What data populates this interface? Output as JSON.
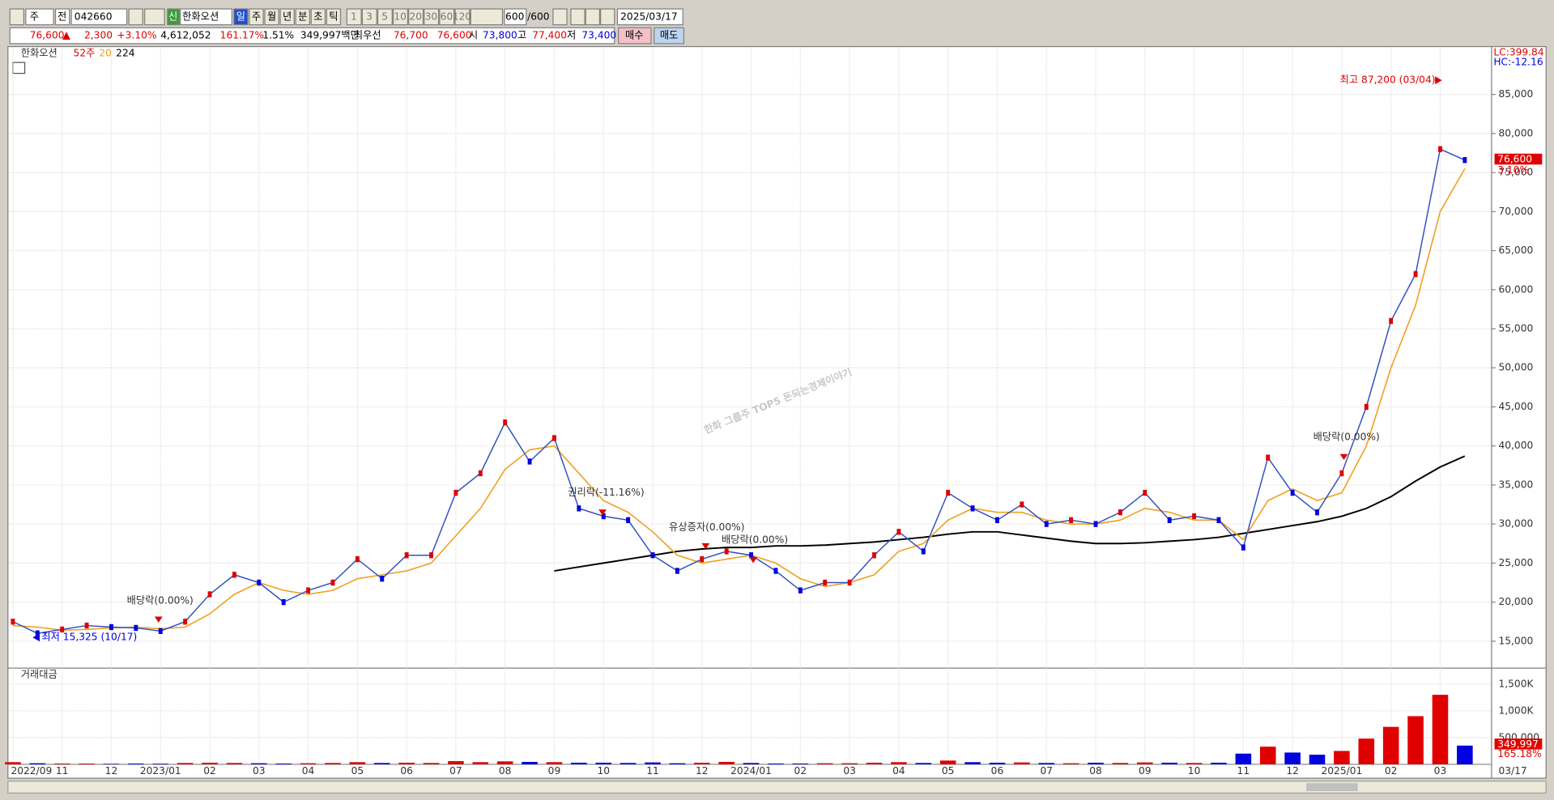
{
  "toolbar": {
    "market": "주",
    "scope": "전",
    "code": "042660",
    "credit": "신",
    "name": "한화오션",
    "periods": [
      "일",
      "주",
      "월",
      "년",
      "분",
      "초",
      "틱"
    ],
    "intervals": [
      "1",
      "3",
      "5",
      "10",
      "20",
      "30",
      "60",
      "120"
    ],
    "count": "600",
    "total": "/600",
    "date": "2025/03/17"
  },
  "info_bar": {
    "items": [
      {
        "text": "76,600",
        "color": "#e00000"
      },
      {
        "text": "2,300",
        "color": "#e00000"
      },
      {
        "text": "+3.10%",
        "color": "#e00000"
      },
      {
        "text": "4,612,052",
        "color": "#000000"
      },
      {
        "text": "161.17%",
        "color": "#e00000"
      },
      {
        "text": "1.51%",
        "color": "#000000"
      },
      {
        "text": "349,997백만",
        "color": "#000000"
      },
      {
        "text": "최우선",
        "color": "#000000"
      },
      {
        "text": "76,700",
        "color": "#e00000"
      },
      {
        "text": "76,600",
        "color": "#e00000"
      },
      {
        "text": "시",
        "color": "#000000"
      },
      {
        "text": "73,800",
        "color": "#0000e0"
      },
      {
        "text": "고",
        "color": "#000000"
      },
      {
        "text": "77,400",
        "color": "#e00000"
      },
      {
        "text": "저",
        "color": "#000000"
      },
      {
        "text": "73,400",
        "color": "#0000e0"
      }
    ],
    "buy": "매수",
    "sell": "매도"
  },
  "chart_data": [
    {
      "type": "line",
      "legend_note": "52주",
      "watermark": "한화 그룹주 TOP5 돈되는경제이야기",
      "x_end_label": "03/17",
      "categories": [
        "2022/09",
        null,
        "11",
        null,
        "12",
        null,
        "2023/01",
        null,
        "02",
        null,
        "03",
        null,
        "04",
        null,
        "05",
        null,
        "06",
        null,
        "07",
        null,
        "08",
        null,
        "09",
        null,
        "10",
        null,
        "11",
        null,
        "12",
        null,
        "2024/01",
        null,
        "02",
        null,
        "03",
        null,
        "04",
        null,
        "05",
        null,
        "06",
        null,
        "07",
        null,
        "08",
        null,
        "09",
        null,
        "10",
        null,
        "11",
        null,
        "12",
        null,
        "2025/01",
        null,
        "02",
        null,
        "03",
        null
      ],
      "series": [
        {
          "name": "한화오션",
          "color": "#3050c0",
          "up_color": "#e00000",
          "down_color": "#0000e0",
          "values": [
            17500,
            16000,
            16500,
            17000,
            16800,
            16700,
            16300,
            17500,
            21000,
            23500,
            22500,
            20000,
            21500,
            22500,
            25500,
            23000,
            26000,
            26000,
            34000,
            36500,
            43000,
            38000,
            41000,
            32000,
            31000,
            30500,
            26000,
            24000,
            25500,
            26500,
            26000,
            24000,
            21500,
            22500,
            22500,
            26000,
            29000,
            26500,
            34000,
            32000,
            30500,
            32500,
            30000,
            30500,
            30000,
            31500,
            34000,
            30500,
            31000,
            30500,
            27000,
            38500,
            34000,
            31500,
            36500,
            45000,
            56000,
            62000,
            78000,
            76600
          ]
        },
        {
          "name": "20",
          "color": "#f0a020",
          "values": [
            17000,
            16800,
            16400,
            16500,
            16700,
            16800,
            16600,
            16800,
            18500,
            21000,
            22500,
            21500,
            21000,
            21500,
            23000,
            23500,
            24000,
            25000,
            28500,
            32000,
            37000,
            39500,
            40000,
            36500,
            33000,
            31500,
            29000,
            26000,
            25000,
            25500,
            26000,
            25000,
            23000,
            22000,
            22500,
            23500,
            26500,
            27500,
            30500,
            32000,
            31500,
            31500,
            30500,
            30000,
            30000,
            30500,
            32000,
            31500,
            30500,
            30500,
            28000,
            33000,
            34500,
            33000,
            34000,
            40000,
            50000,
            58000,
            70000,
            75500
          ]
        },
        {
          "name": "224",
          "color": "#000000",
          "values": [
            null,
            null,
            null,
            null,
            null,
            null,
            null,
            null,
            null,
            null,
            null,
            null,
            null,
            null,
            null,
            null,
            null,
            null,
            null,
            null,
            null,
            null,
            24000,
            24500,
            25000,
            25500,
            26000,
            26500,
            26800,
            27000,
            27000,
            27200,
            27200,
            27300,
            27500,
            27700,
            28000,
            28300,
            28700,
            29000,
            29000,
            28600,
            28200,
            27800,
            27500,
            27500,
            27600,
            27800,
            28000,
            28300,
            28800,
            29300,
            29800,
            30300,
            31000,
            32000,
            33500,
            35500,
            37300,
            38700
          ]
        }
      ],
      "ylim": [
        11800,
        91000
      ],
      "yticks": [
        {
          "value": 15000,
          "label": "15,000"
        },
        {
          "value": 20000,
          "label": "20,000"
        },
        {
          "value": 25000,
          "label": "25,000"
        },
        {
          "value": 30000,
          "label": "30,000"
        },
        {
          "value": 35000,
          "label": "35,000"
        },
        {
          "value": 40000,
          "label": "40,000"
        },
        {
          "value": 45000,
          "label": "45,000"
        },
        {
          "value": 50000,
          "label": "50,000"
        },
        {
          "value": 55000,
          "label": "55,000"
        },
        {
          "value": 60000,
          "label": "60,000"
        },
        {
          "value": 65000,
          "label": "65,000"
        },
        {
          "value": 70000,
          "label": "70,000"
        },
        {
          "value": 75000,
          "label": "75,000"
        },
        {
          "value": 80000,
          "label": "80,000"
        },
        {
          "value": 85000,
          "label": "85,000"
        }
      ],
      "grid": true,
      "annotations": [
        {
          "text": "최고 87,200 (03/04)",
          "color": "#e00000"
        },
        {
          "text": "최저 15,325 (10/17)",
          "color": "#0000e0"
        },
        {
          "text": "배당락(0.00%)",
          "color": "#333333"
        },
        {
          "text": "권리락(-11.16%)",
          "color": "#333333"
        },
        {
          "text": "유상증자(0.00%)",
          "color": "#333333"
        },
        {
          "text": "배당락(0.00%)",
          "color": "#333333"
        },
        {
          "text": "배당락(0.00%)",
          "color": "#333333"
        }
      ],
      "right_labels": [
        {
          "text": "LC:399.84",
          "color": "#e00000"
        },
        {
          "text": "HC:-12.16",
          "color": "#0000e0"
        },
        {
          "text": "76,600",
          "color": "#ffffff"
        },
        {
          "text": "3.10%",
          "color": "#e00000"
        }
      ]
    },
    {
      "type": "bar",
      "title": "거래대금",
      "up_color": "#e00000",
      "down_color": "#0000e0",
      "values": [
        40,
        20,
        15,
        15,
        10,
        15,
        12,
        25,
        30,
        25,
        20,
        15,
        20,
        25,
        40,
        25,
        30,
        25,
        60,
        40,
        55,
        45,
        40,
        30,
        30,
        25,
        35,
        20,
        30,
        45,
        25,
        15,
        15,
        20,
        20,
        30,
        40,
        25,
        70,
        40,
        30,
        35,
        25,
        20,
        30,
        25,
        35,
        30,
        25,
        30,
        200,
        330,
        220,
        180,
        250,
        480,
        700,
        900,
        1300,
        350
      ],
      "ylim": [
        0,
        1760
      ],
      "yticks": [
        {
          "value": 500,
          "label": "500,000"
        },
        {
          "value": 1000,
          "label": "1,000K"
        },
        {
          "value": 1500,
          "label": "1,500K"
        }
      ],
      "right_labels": [
        {
          "text": "349,997",
          "color": "#ffffff"
        },
        {
          "text": "165.18%",
          "color": "#e00000"
        }
      ]
    }
  ]
}
